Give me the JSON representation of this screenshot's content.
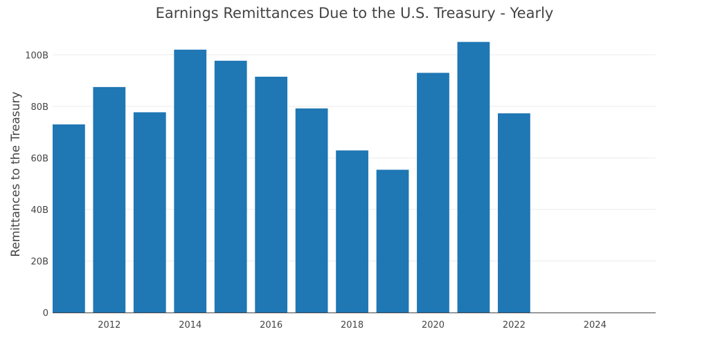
{
  "chart_data": {
    "type": "bar",
    "title": "Earnings Remittances Due to the U.S. Treasury - Yearly",
    "xlabel": "",
    "ylabel": "Remittances to the Treasury",
    "color": "#1f77b4",
    "x": [
      2011,
      2012,
      2013,
      2014,
      2015,
      2016,
      2017,
      2018,
      2019,
      2020,
      2021,
      2022
    ],
    "values": [
      73.0,
      87.5,
      77.7,
      102.0,
      97.7,
      91.5,
      79.2,
      62.9,
      55.4,
      93.0,
      105.0,
      77.3
    ],
    "xlim": [
      2010.6,
      2025.5
    ],
    "ylim": [
      0,
      110
    ],
    "x_ticks": [
      {
        "value": 2012,
        "label": "2012"
      },
      {
        "value": 2014,
        "label": "2014"
      },
      {
        "value": 2016,
        "label": "2016"
      },
      {
        "value": 2018,
        "label": "2018"
      },
      {
        "value": 2020,
        "label": "2020"
      },
      {
        "value": 2022,
        "label": "2022"
      },
      {
        "value": 2024,
        "label": "2024"
      }
    ],
    "y_ticks": [
      {
        "value": 0,
        "label": "0"
      },
      {
        "value": 20,
        "label": "20B"
      },
      {
        "value": 40,
        "label": "40B"
      },
      {
        "value": 60,
        "label": "60B"
      },
      {
        "value": 80,
        "label": "80B"
      },
      {
        "value": 100,
        "label": "100B"
      }
    ],
    "grid": true
  }
}
